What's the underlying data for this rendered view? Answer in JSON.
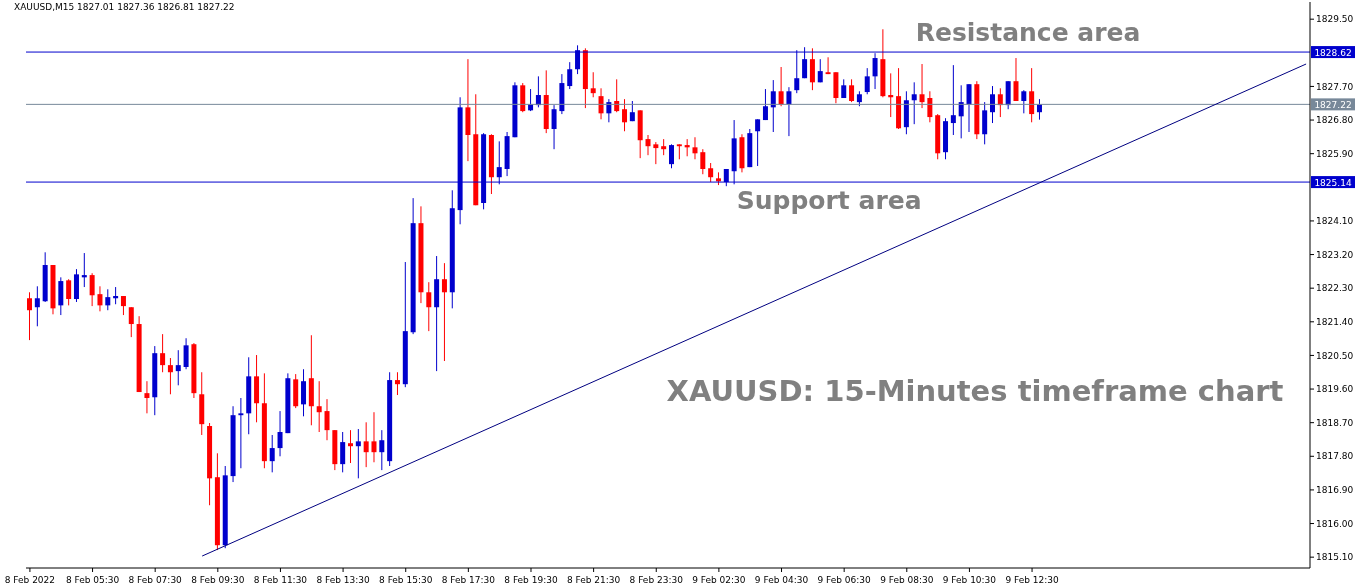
{
  "chart_data": {
    "type": "candlestick",
    "title": "XAUUSD,M15 1827.01 1827.36 1826.81 1827.22",
    "categories": [
      "8 Feb 2022",
      null,
      null,
      null,
      null,
      null,
      null,
      null,
      "8 Feb 05:30",
      null,
      null,
      null,
      null,
      null,
      null,
      null,
      "8 Feb 07:30",
      null,
      null,
      null,
      null,
      null,
      null,
      null,
      "8 Feb 09:30",
      null,
      null,
      null,
      null,
      null,
      null,
      null,
      "8 Feb 11:30",
      null,
      null,
      null,
      null,
      null,
      null,
      null,
      "8 Feb 13:30",
      null,
      null,
      null,
      null,
      null,
      null,
      null,
      "8 Feb 15:30",
      null,
      null,
      null,
      null,
      null,
      null,
      null,
      "8 Feb 17:30",
      null,
      null,
      null,
      null,
      null,
      null,
      null,
      "8 Feb 19:30",
      null,
      null,
      null,
      null,
      null,
      null,
      null,
      "8 Feb 21:30",
      null,
      null,
      null,
      null,
      null,
      null,
      null,
      "8 Feb 23:30",
      null,
      null,
      null,
      null,
      null,
      null,
      null,
      "9 Feb 02:30",
      null,
      null,
      null,
      null,
      null,
      null,
      null,
      "9 Feb 04:30",
      null,
      null,
      null,
      null,
      null,
      null,
      null,
      "9 Feb 06:30",
      null,
      null,
      null,
      null,
      null,
      null,
      null,
      "9 Feb 08:30",
      null,
      null,
      null,
      null,
      null,
      null,
      null,
      "9 Feb 10:30",
      null,
      null,
      null,
      null,
      null,
      null,
      null,
      "9 Feb 12:30",
      null,
      null,
      null,
      null,
      null,
      null,
      null,
      null,
      null,
      null,
      null,
      null,
      null,
      null,
      null,
      null,
      null,
      null,
      null,
      null,
      null,
      null,
      null,
      null,
      null,
      null,
      null,
      null,
      null,
      null,
      null,
      null,
      null,
      null,
      null
    ],
    "ohlc": [
      [
        1822.03,
        1822.19,
        1820.91,
        1821.71
      ],
      [
        1821.79,
        1822.35,
        1821.28,
        1822.03
      ],
      [
        1821.95,
        1823.26,
        1821.93,
        1822.92
      ],
      [
        1822.92,
        1822.92,
        1821.6,
        1821.76
      ],
      [
        1821.84,
        1822.59,
        1821.58,
        1822.49
      ],
      [
        1822.51,
        1822.54,
        1821.84,
        1822.01
      ],
      [
        1822.01,
        1822.81,
        1821.93,
        1822.67
      ],
      [
        1822.59,
        1823.24,
        1822.33,
        1822.65
      ],
      [
        1822.65,
        1822.7,
        1821.82,
        1822.11
      ],
      [
        1822.14,
        1822.35,
        1821.68,
        1821.84
      ],
      [
        1821.84,
        1822.27,
        1821.71,
        1822.06
      ],
      [
        1822.03,
        1822.33,
        1821.87,
        1822.09
      ],
      [
        1822.09,
        1822.09,
        1821.58,
        1821.82
      ],
      [
        1821.79,
        1821.79,
        1820.99,
        1821.34
      ],
      [
        1821.34,
        1821.55,
        1819.52,
        1819.52
      ],
      [
        1819.49,
        1819.81,
        1818.95,
        1819.36
      ],
      [
        1819.38,
        1820.75,
        1818.9,
        1820.56
      ],
      [
        1820.56,
        1821.07,
        1820.05,
        1820.24
      ],
      [
        1820.24,
        1820.43,
        1819.46,
        1820.05
      ],
      [
        1820.08,
        1820.64,
        1819.7,
        1820.24
      ],
      [
        1820.19,
        1820.96,
        1820.13,
        1820.77
      ],
      [
        1820.8,
        1820.83,
        1819.36,
        1819.49
      ],
      [
        1819.46,
        1820.05,
        1818.37,
        1818.66
      ],
      [
        1818.61,
        1818.69,
        1816.49,
        1817.21
      ],
      [
        1817.24,
        1817.88,
        1815.29,
        1815.42
      ],
      [
        1815.42,
        1817.54,
        1815.34,
        1817.29
      ],
      [
        1817.27,
        1819.14,
        1817.11,
        1818.9
      ],
      [
        1818.9,
        1819.36,
        1817.48,
        1818.95
      ],
      [
        1818.95,
        1820.45,
        1818.39,
        1819.94
      ],
      [
        1819.94,
        1820.51,
        1818.71,
        1819.22
      ],
      [
        1819.22,
        1820.02,
        1817.48,
        1817.67
      ],
      [
        1817.67,
        1818.37,
        1817.37,
        1818.02
      ],
      [
        1818.02,
        1819.01,
        1817.8,
        1818.45
      ],
      [
        1818.42,
        1820.02,
        1818.42,
        1819.89
      ],
      [
        1819.86,
        1820.0,
        1819.09,
        1819.14
      ],
      [
        1819.19,
        1820.13,
        1818.87,
        1819.81
      ],
      [
        1819.89,
        1821.04,
        1818.63,
        1819.14
      ],
      [
        1819.14,
        1819.81,
        1818.45,
        1818.98
      ],
      [
        1819.01,
        1819.33,
        1818.23,
        1818.5
      ],
      [
        1818.5,
        1818.5,
        1817.43,
        1817.59
      ],
      [
        1817.59,
        1818.45,
        1817.37,
        1818.18
      ],
      [
        1818.15,
        1818.5,
        1817.62,
        1818.07
      ],
      [
        1818.07,
        1818.53,
        1817.21,
        1818.2
      ],
      [
        1818.2,
        1818.71,
        1817.51,
        1817.91
      ],
      [
        1818.2,
        1818.98,
        1817.64,
        1817.91
      ],
      [
        1817.91,
        1818.5,
        1817.43,
        1818.23
      ],
      [
        1817.67,
        1820.05,
        1817.54,
        1819.84
      ],
      [
        1819.84,
        1820.05,
        1819.44,
        1819.73
      ],
      [
        1819.73,
        1823.0,
        1819.65,
        1821.15
      ],
      [
        1821.12,
        1824.71,
        1821.07,
        1824.04
      ],
      [
        1824.04,
        1824.49,
        1821.9,
        1822.19
      ],
      [
        1822.19,
        1822.46,
        1821.15,
        1821.79
      ],
      [
        1821.79,
        1823.16,
        1820.08,
        1822.54
      ],
      [
        1822.54,
        1822.97,
        1820.35,
        1822.19
      ],
      [
        1822.19,
        1824.92,
        1821.76,
        1824.44
      ],
      [
        1824.39,
        1827.41,
        1824.01,
        1827.14
      ],
      [
        1827.14,
        1828.43,
        1825.7,
        1826.4
      ],
      [
        1826.42,
        1827.49,
        1824.52,
        1824.52
      ],
      [
        1824.58,
        1826.45,
        1824.41,
        1826.42
      ],
      [
        1826.4,
        1826.42,
        1824.82,
        1825.27
      ],
      [
        1825.27,
        1826.23,
        1825.08,
        1825.54
      ],
      [
        1825.49,
        1826.48,
        1825.3,
        1826.37
      ],
      [
        1826.34,
        1827.81,
        1826.34,
        1827.73
      ],
      [
        1827.73,
        1827.79,
        1827.01,
        1827.04
      ],
      [
        1827.06,
        1827.63,
        1827.04,
        1827.22
      ],
      [
        1827.2,
        1827.97,
        1827.14,
        1827.47
      ],
      [
        1827.47,
        1828.13,
        1826.45,
        1826.56
      ],
      [
        1826.56,
        1827.2,
        1826.02,
        1827.09
      ],
      [
        1827.04,
        1828.03,
        1826.96,
        1827.79
      ],
      [
        1827.71,
        1828.35,
        1827.63,
        1828.16
      ],
      [
        1828.16,
        1828.8,
        1828.03,
        1828.67
      ],
      [
        1828.67,
        1828.72,
        1827.12,
        1827.63
      ],
      [
        1827.65,
        1828.08,
        1827.41,
        1827.52
      ],
      [
        1827.44,
        1827.65,
        1826.82,
        1826.98
      ],
      [
        1826.98,
        1827.36,
        1826.74,
        1827.28
      ],
      [
        1827.31,
        1827.89,
        1827.01,
        1827.04
      ],
      [
        1827.09,
        1827.36,
        1826.5,
        1826.74
      ],
      [
        1826.77,
        1827.31,
        1826.77,
        1827.01
      ],
      [
        1827.06,
        1827.06,
        1825.78,
        1826.26
      ],
      [
        1826.29,
        1826.4,
        1825.86,
        1826.1
      ],
      [
        1826.15,
        1826.21,
        1825.62,
        1826.05
      ],
      [
        1826.1,
        1826.29,
        1825.86,
        1826.02
      ],
      [
        1825.62,
        1826.15,
        1825.51,
        1826.13
      ],
      [
        1826.15,
        1826.15,
        1825.75,
        1826.1
      ],
      [
        1826.13,
        1826.29,
        1825.83,
        1826.07
      ],
      [
        1826.07,
        1826.34,
        1825.75,
        1825.91
      ],
      [
        1825.94,
        1826.02,
        1825.35,
        1825.49
      ],
      [
        1825.51,
        1825.65,
        1825.14,
        1825.27
      ],
      [
        1825.24,
        1825.4,
        1825.06,
        1825.16
      ],
      [
        1825.14,
        1825.49,
        1825.03,
        1825.49
      ],
      [
        1825.43,
        1826.8,
        1825.08,
        1826.31
      ],
      [
        1826.34,
        1826.42,
        1825.4,
        1825.51
      ],
      [
        1825.54,
        1826.56,
        1825.54,
        1826.45
      ],
      [
        1826.5,
        1826.82,
        1825.57,
        1826.82
      ],
      [
        1826.8,
        1827.63,
        1826.8,
        1827.17
      ],
      [
        1827.14,
        1827.87,
        1826.48,
        1827.57
      ],
      [
        1827.57,
        1828.22,
        1827.17,
        1827.22
      ],
      [
        1827.22,
        1827.68,
        1826.37,
        1827.57
      ],
      [
        1827.6,
        1828.67,
        1827.52,
        1827.92
      ],
      [
        1827.92,
        1828.75,
        1827.92,
        1828.43
      ],
      [
        1828.43,
        1828.72,
        1827.6,
        1827.81
      ],
      [
        1827.81,
        1828.43,
        1827.81,
        1828.11
      ],
      [
        1828.08,
        1828.48,
        1828.03,
        1828.03
      ],
      [
        1828.08,
        1828.08,
        1827.25,
        1827.39
      ],
      [
        1827.39,
        1827.89,
        1827.39,
        1827.73
      ],
      [
        1827.73,
        1827.89,
        1827.28,
        1827.31
      ],
      [
        1827.28,
        1827.57,
        1827.17,
        1827.49
      ],
      [
        1827.55,
        1828.19,
        1827.49,
        1827.97
      ],
      [
        1827.97,
        1828.59,
        1827.63,
        1828.46
      ],
      [
        1828.43,
        1829.23,
        1827.41,
        1827.44
      ],
      [
        1827.47,
        1828.05,
        1826.88,
        1827.41
      ],
      [
        1827.44,
        1828.19,
        1826.56,
        1826.58
      ],
      [
        1826.61,
        1827.57,
        1826.42,
        1827.33
      ],
      [
        1827.33,
        1827.81,
        1826.69,
        1827.49
      ],
      [
        1827.49,
        1828.3,
        1827.12,
        1827.28
      ],
      [
        1827.39,
        1827.57,
        1826.74,
        1826.88
      ],
      [
        1826.93,
        1826.96,
        1825.75,
        1825.91
      ],
      [
        1825.94,
        1826.85,
        1825.75,
        1826.77
      ],
      [
        1826.72,
        1828.27,
        1826.4,
        1826.93
      ],
      [
        1826.9,
        1827.73,
        1826.31,
        1827.28
      ],
      [
        1827.22,
        1827.76,
        1826.48,
        1827.76
      ],
      [
        1827.76,
        1827.84,
        1826.29,
        1826.42
      ],
      [
        1826.42,
        1827.28,
        1826.15,
        1827.06
      ],
      [
        1827.01,
        1827.71,
        1826.72,
        1827.49
      ],
      [
        1827.49,
        1827.65,
        1826.88,
        1827.2
      ],
      [
        1827.2,
        1827.84,
        1827.09,
        1827.84
      ],
      [
        1827.84,
        1828.46,
        1827.31,
        1827.31
      ],
      [
        1827.31,
        1827.6,
        1826.98,
        1827.57
      ],
      [
        1827.57,
        1828.19,
        1826.74,
        1826.96
      ],
      [
        1827.01,
        1827.36,
        1826.81,
        1827.22
      ],
      null,
      null,
      null,
      null,
      null,
      null,
      null,
      null,
      null,
      null,
      null,
      null,
      null,
      null,
      null,
      null,
      null,
      null,
      null,
      null,
      null,
      null,
      null,
      null,
      null,
      null,
      null,
      null,
      null,
      null,
      null,
      null,
      null,
      null
    ],
    "colors": [
      "#ff0000",
      "#0000cd",
      "#0000cd",
      "#ff0000",
      "#0000cd",
      "#ff0000",
      "#0000cd",
      "#0000cd",
      "#ff0000",
      "#ff0000",
      "#0000cd",
      "#0000cd",
      "#ff0000",
      "#ff0000",
      "#ff0000",
      "#ff0000",
      "#0000cd",
      "#ff0000",
      "#ff0000",
      "#0000cd",
      "#0000cd",
      "#ff0000",
      "#ff0000",
      "#ff0000",
      "#ff0000",
      "#0000cd",
      "#0000cd",
      "#0000cd",
      "#0000cd",
      "#ff0000",
      "#ff0000",
      "#0000cd",
      "#0000cd",
      "#0000cd",
      "#ff0000",
      "#0000cd",
      "#ff0000",
      "#ff0000",
      "#ff0000",
      "#ff0000",
      "#0000cd",
      "#ff0000",
      "#0000cd",
      "#ff0000",
      "#ff0000",
      "#0000cd",
      "#0000cd",
      "#ff0000",
      "#0000cd",
      "#0000cd",
      "#ff0000",
      "#ff0000",
      "#0000cd",
      "#ff0000",
      "#0000cd",
      "#0000cd",
      "#ff0000",
      "#ff0000",
      "#0000cd",
      "#ff0000",
      "#0000cd",
      "#0000cd",
      "#0000cd",
      "#ff0000",
      "#0000cd",
      "#0000cd",
      "#ff0000",
      "#0000cd",
      "#0000cd",
      "#0000cd",
      "#0000cd",
      "#ff0000",
      "#ff0000",
      "#ff0000",
      "#0000cd",
      "#ff0000",
      "#ff0000",
      "#0000cd",
      "#ff0000",
      "#ff0000",
      "#ff0000",
      "#ff0000",
      "#0000cd",
      "#ff0000",
      "#ff0000",
      "#ff0000",
      "#ff0000",
      "#ff0000",
      "#ff0000",
      "#0000cd",
      "#0000cd",
      "#ff0000",
      "#0000cd",
      "#0000cd",
      "#0000cd",
      "#0000cd",
      "#ff0000",
      "#0000cd",
      "#0000cd",
      "#0000cd",
      "#ff0000",
      "#0000cd",
      "#ff0000",
      "#ff0000",
      "#0000cd",
      "#ff0000",
      "#0000cd",
      "#0000cd",
      "#0000cd",
      "#ff0000",
      "#ff0000",
      "#ff0000",
      "#0000cd",
      "#0000cd",
      "#ff0000",
      "#ff0000",
      "#ff0000",
      "#0000cd",
      "#0000cd",
      "#0000cd",
      "#0000cd",
      "#ff0000",
      "#0000cd",
      "#0000cd",
      "#ff0000",
      "#0000cd",
      "#ff0000",
      "#0000cd",
      "#ff0000",
      "#0000cd",
      null,
      null,
      null,
      null,
      null,
      null,
      null,
      null,
      null,
      null,
      null,
      null,
      null,
      null,
      null,
      null,
      null,
      null,
      null,
      null,
      null,
      null,
      null,
      null,
      null,
      null,
      null,
      null,
      null,
      null,
      null,
      null,
      null,
      null
    ],
    "series": [
      {
        "type": "line",
        "color": "#000080",
        "values": [
          null,
          null,
          null,
          null,
          null,
          null,
          null,
          null,
          null,
          null,
          null,
          null,
          null,
          null,
          null,
          null,
          null,
          null,
          null,
          null,
          null,
          null,
          1815.13,
          null,
          null,
          null,
          null,
          null,
          null,
          null,
          null,
          null,
          null,
          null,
          null,
          null,
          null,
          null,
          null,
          null,
          null,
          null,
          null,
          null,
          null,
          null,
          null,
          null,
          null,
          null,
          null,
          null,
          null,
          null,
          null,
          null,
          null,
          null,
          null,
          null,
          null,
          null,
          null,
          null,
          null,
          null,
          null,
          null,
          null,
          null,
          null,
          null,
          null,
          null,
          null,
          null,
          null,
          null,
          null,
          null,
          null,
          null,
          null,
          null,
          null,
          null,
          null,
          null,
          null,
          null,
          null,
          null,
          null,
          null,
          null,
          null,
          null,
          null,
          null,
          null,
          null,
          null,
          null,
          null,
          null,
          null,
          null,
          null,
          null,
          null,
          null,
          null,
          null,
          null,
          null,
          null,
          null,
          null,
          null,
          null,
          null,
          null,
          null,
          null,
          null,
          null,
          null,
          null,
          null,
          null,
          null,
          null,
          null,
          null,
          null,
          null,
          null,
          null,
          null,
          null,
          null,
          null,
          null,
          null,
          null,
          null,
          null,
          null,
          null,
          null,
          null,
          null,
          null,
          null,
          null,
          null,
          null,
          null,
          null,
          null,
          null,
          null,
          null,
          1828.3
        ]
      }
    ],
    "ylim": [
      1814.81,
      1829.96
    ],
    "yticks": [
      {
        "value": 1815.1,
        "label": "1815.10"
      },
      {
        "value": 1816,
        "label": "1816.00"
      },
      {
        "value": 1816.9,
        "label": "1816.90"
      },
      {
        "value": 1817.8,
        "label": "1817.80"
      },
      {
        "value": 1818.7,
        "label": "1818.70"
      },
      {
        "value": 1819.6,
        "label": "1819.60"
      },
      {
        "value": 1820.5,
        "label": "1820.50"
      },
      {
        "value": 1821.4,
        "label": "1821.40"
      },
      {
        "value": 1822.3,
        "label": "1822.30"
      },
      {
        "value": 1823.2,
        "label": "1823.20"
      },
      {
        "value": 1824.1,
        "label": "1824.10"
      },
      {
        "value": 1825.9,
        "label": "1825.90"
      },
      {
        "value": 1826.8,
        "label": "1826.80"
      },
      {
        "value": 1827.7,
        "label": "1827.70"
      },
      {
        "value": 1829.5,
        "label": "1829.50"
      }
    ],
    "ref_lines": [
      {
        "axis": "y",
        "value": 1828.62,
        "label": "1828.62",
        "color": "#0000cd"
      },
      {
        "axis": "y",
        "value": 1827.22,
        "label": "1827.22",
        "color": "#778899"
      },
      {
        "axis": "y",
        "value": 1825.14,
        "label": "1825.14",
        "color": "#0000cd"
      }
    ],
    "annotations": [
      {
        "text": "Resistance area",
        "x": "9 Feb 12:30",
        "y": 1828.62
      },
      {
        "text": "Support area",
        "x": "9 Feb 06:30",
        "y": 1825.14
      },
      "XAUUSD: 15-Minutes timeframe chart"
    ]
  }
}
